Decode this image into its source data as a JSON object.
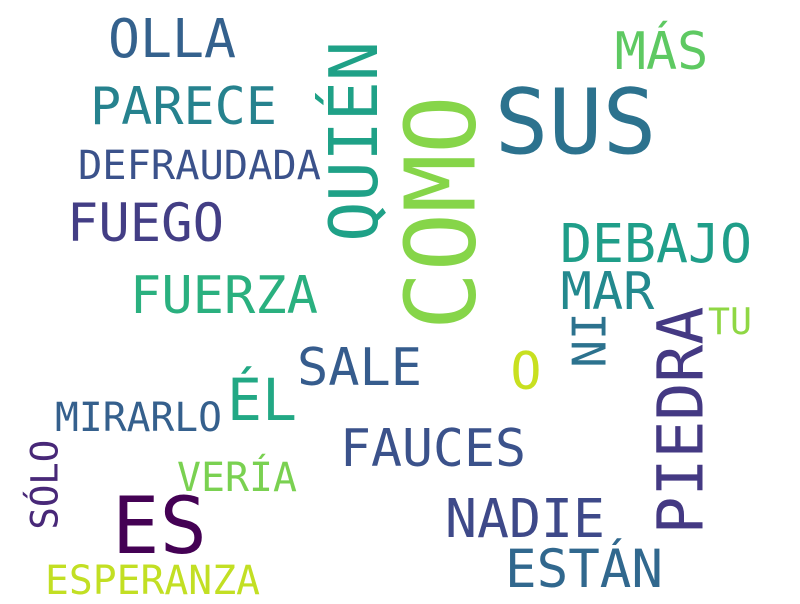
{
  "words": [
    {
      "text": "COMO",
      "color": "#86d549",
      "orientation": "vertical"
    },
    {
      "text": "SUS",
      "color": "#2c728e",
      "orientation": "horizontal"
    },
    {
      "text": "ES",
      "color": "#440154",
      "orientation": "horizontal"
    },
    {
      "text": "PIEDRA",
      "color": "#443983",
      "orientation": "vertical"
    },
    {
      "text": "QUIÉN",
      "color": "#1fa187",
      "orientation": "vertical"
    },
    {
      "text": "DEBAJO",
      "color": "#1f9e89",
      "orientation": "horizontal"
    },
    {
      "text": "NADIE",
      "color": "#3e4989",
      "orientation": "horizontal"
    },
    {
      "text": "ESTÁN",
      "color": "#31688e",
      "orientation": "horizontal"
    },
    {
      "text": "FAUCES",
      "color": "#3b528b",
      "orientation": "horizontal"
    },
    {
      "text": "PARECE",
      "color": "#26828e",
      "orientation": "horizontal"
    },
    {
      "text": "FUEGO",
      "color": "#433e85",
      "orientation": "horizontal"
    },
    {
      "text": "ÉL",
      "color": "#22a884",
      "orientation": "horizontal"
    },
    {
      "text": "SALE",
      "color": "#365c8d",
      "orientation": "horizontal"
    },
    {
      "text": "FUERZA",
      "color": "#2ab07f",
      "orientation": "horizontal"
    },
    {
      "text": "MAR",
      "color": "#23898e",
      "orientation": "horizontal"
    },
    {
      "text": "OLLA",
      "color": "#34618d",
      "orientation": "horizontal"
    },
    {
      "text": "MÁS",
      "color": "#5ec962",
      "orientation": "horizontal"
    },
    {
      "text": "O",
      "color": "#c8e020",
      "orientation": "horizontal"
    },
    {
      "text": "NI",
      "color": "#2c728e",
      "orientation": "vertical"
    },
    {
      "text": "ESPERANZA",
      "color": "#c2df23",
      "orientation": "horizontal"
    },
    {
      "text": "MIRARLO",
      "color": "#35608d",
      "orientation": "horizontal"
    },
    {
      "text": "VERÍA",
      "color": "#7ad151",
      "orientation": "horizontal"
    },
    {
      "text": "DEFRAUDADA",
      "color": "#3b528b",
      "orientation": "horizontal"
    },
    {
      "text": "SÓLO",
      "color": "#482878",
      "orientation": "vertical"
    },
    {
      "text": "TU",
      "color": "#8fd744",
      "orientation": "horizontal"
    }
  ]
}
